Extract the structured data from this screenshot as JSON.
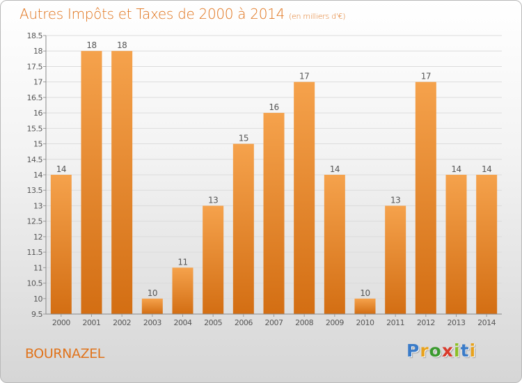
{
  "title": "Autres Impôts et Taxes de 2000 à 2014",
  "unit": "(en milliers d'€)",
  "commune": "BOURNAZEL",
  "logo": {
    "letters": [
      "P",
      "r",
      "o",
      "x",
      "i",
      "t",
      "i"
    ],
    "colors": [
      "#3a7bc8",
      "#e8a21c",
      "#3a9a2e",
      "#d93a2b",
      "#8cbf26",
      "#3a7bc8",
      "#e8a21c"
    ]
  },
  "chart_data": {
    "type": "bar",
    "categories": [
      "2000",
      "2001",
      "2002",
      "2003",
      "2004",
      "2005",
      "2006",
      "2007",
      "2008",
      "2009",
      "2010",
      "2011",
      "2012",
      "2013",
      "2014"
    ],
    "values": [
      14,
      18,
      18,
      10,
      11,
      13,
      15,
      16,
      17,
      14,
      10,
      13,
      17,
      14,
      14
    ],
    "ylim": [
      9.5,
      18.5
    ],
    "yticks": [
      "9.5",
      "10",
      "10.5",
      "11",
      "11.5",
      "12",
      "12.5",
      "13",
      "13.5",
      "14",
      "14.5",
      "15",
      "15.5",
      "16",
      "16.5",
      "17",
      "17.5",
      "18",
      "18.5"
    ],
    "grid": true,
    "bar_color": "#f08c2c"
  }
}
